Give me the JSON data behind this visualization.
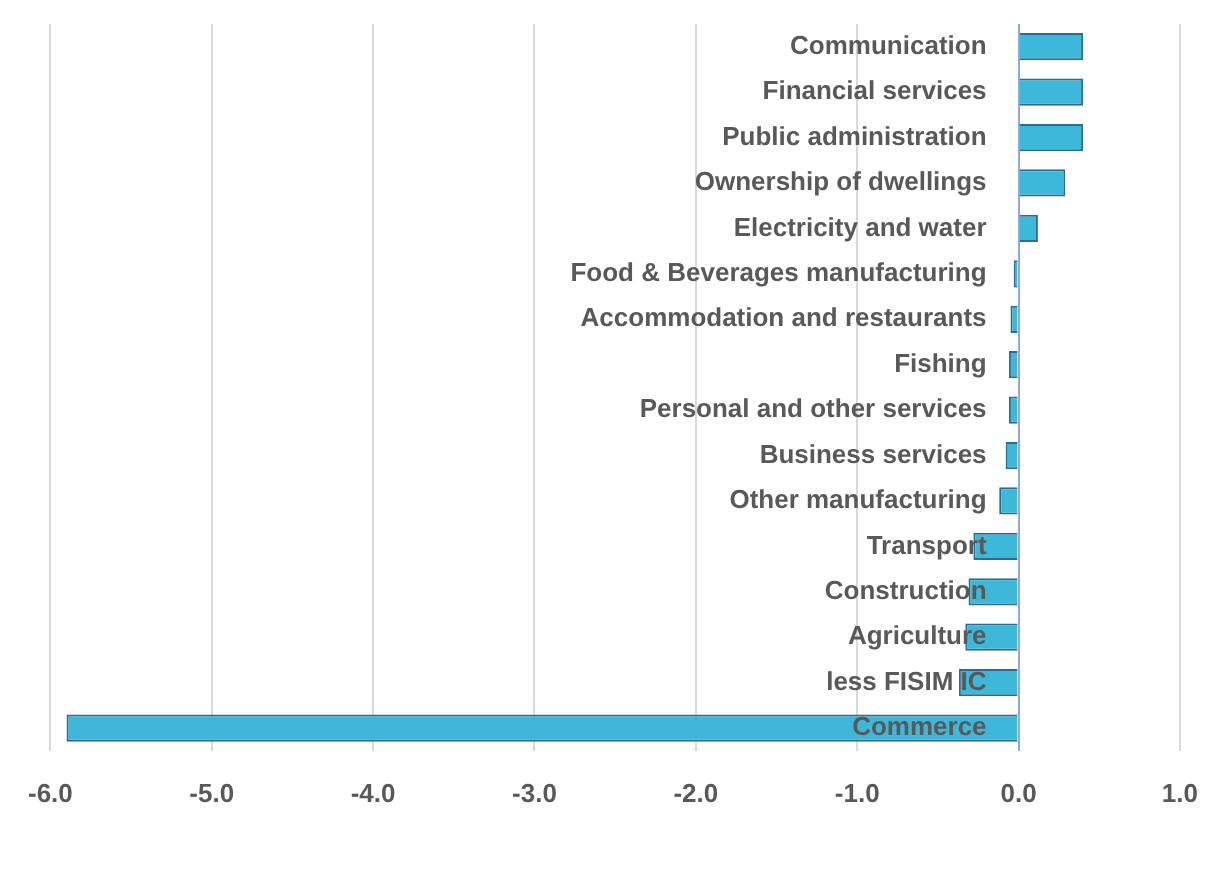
{
  "chart_data": {
    "type": "bar",
    "orientation": "horizontal",
    "categories": [
      "Communication",
      "Financial services",
      "Public administration",
      "Ownership of dwellings",
      "Electricity and water",
      "Food & Beverages manufacturing",
      "Accommodation and restaurants",
      "Fishing",
      "Personal and other services",
      "Business services",
      "Other manufacturing",
      "Transport",
      "Construction",
      "Agriculture",
      "less FISIM IC",
      "Commerce"
    ],
    "values": [
      0.4,
      0.4,
      0.4,
      0.29,
      0.12,
      -0.03,
      -0.05,
      -0.06,
      -0.06,
      -0.08,
      -0.12,
      -0.28,
      -0.31,
      -0.33,
      -0.37,
      -5.9
    ],
    "color": "#3db8d9",
    "xlim": [
      -6.0,
      1.0
    ],
    "xticks": [
      {
        "value": -6,
        "label": "-6.0"
      },
      {
        "value": -5,
        "label": "-5.0"
      },
      {
        "value": -4,
        "label": "-4.0"
      },
      {
        "value": -3,
        "label": "-3.0"
      },
      {
        "value": -2,
        "label": "-2.0"
      },
      {
        "value": -1,
        "label": "-1.0"
      },
      {
        "value": 0,
        "label": "0.0"
      },
      {
        "value": 1,
        "label": "1.0"
      }
    ],
    "grid": "x"
  }
}
